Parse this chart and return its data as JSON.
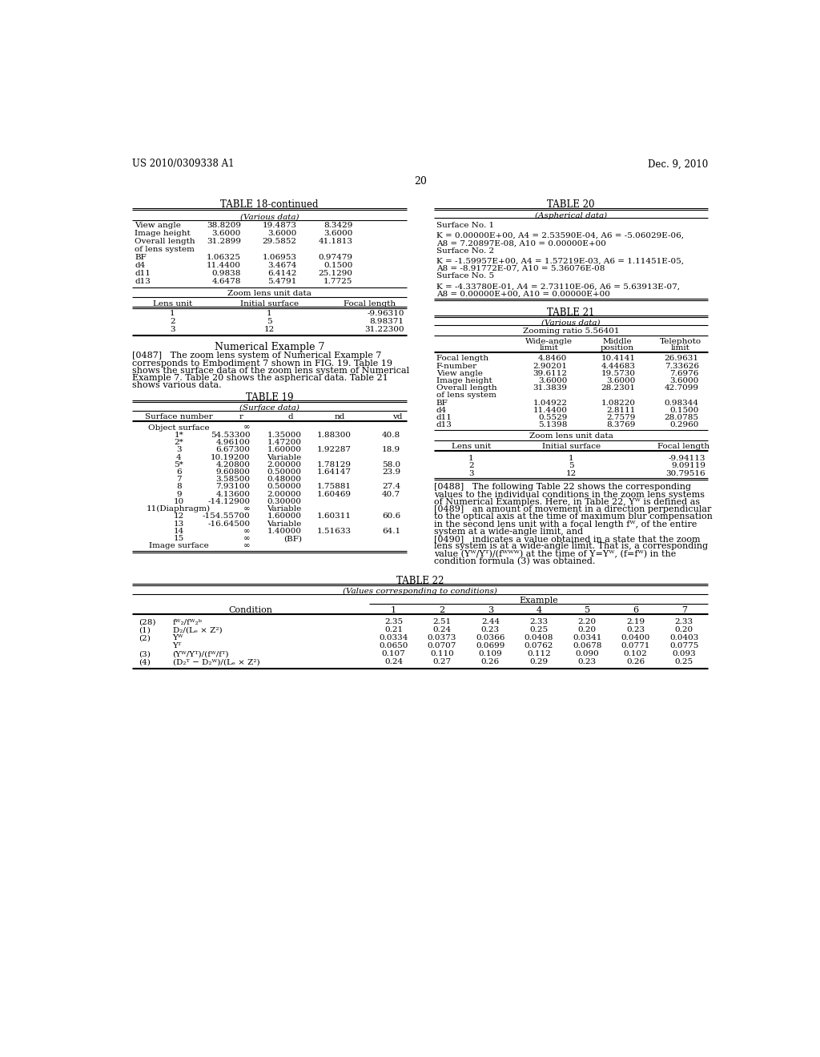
{
  "header_left": "US 2010/0309338 A1",
  "header_right": "Dec. 9, 2010",
  "page_number": "20",
  "background_color": "#ffffff",
  "text_color": "#000000",
  "table18c_title": "TABLE 18-continued",
  "table18c_subtitle": "(Various data)",
  "table18c_various_rows": [
    [
      "View angle",
      "38.8209",
      "19.4873",
      "8.3429"
    ],
    [
      "Image height",
      "3.6000",
      "3.6000",
      "3.6000"
    ],
    [
      "Overall length",
      "31.2899",
      "29.5852",
      "41.1813"
    ],
    [
      "of lens system",
      "",
      "",
      ""
    ],
    [
      "BF",
      "1.06325",
      "1.06953",
      "0.97479"
    ],
    [
      "d4",
      "11.4400",
      "3.4674",
      "0.1500"
    ],
    [
      "d11",
      "0.9838",
      "6.4142",
      "25.1290"
    ],
    [
      "d13",
      "4.6478",
      "5.4791",
      "1.7725"
    ]
  ],
  "table18c_zoom_subtitle": "Zoom lens unit data",
  "table18c_zoom_headers": [
    "Lens unit",
    "Initial surface",
    "Focal length"
  ],
  "table18c_zoom_rows": [
    [
      "1",
      "1",
      "-9.96310"
    ],
    [
      "2",
      "5",
      "8.98371"
    ],
    [
      "3",
      "12",
      "31.22300"
    ]
  ],
  "numerical_example7_title": "Numerical Example 7",
  "para0487_lines": [
    "[0487]   The zoom lens system of Numerical Example 7",
    "corresponds to Embodiment 7 shown in FIG. 19. Table 19",
    "shows the surface data of the zoom lens system of Numerical",
    "Example 7. Table 20 shows the aspherical data. Table 21",
    "shows various data."
  ],
  "table19_title": "TABLE 19",
  "table19_subtitle": "(Surface data)",
  "table19_headers": [
    "Surface number",
    "r",
    "d",
    "nd",
    "vd"
  ],
  "table19_rows": [
    [
      "Object surface",
      "∞",
      "",
      "",
      ""
    ],
    [
      "1*",
      "54.53300",
      "1.35000",
      "1.88300",
      "40.8"
    ],
    [
      "2*",
      "4.96100",
      "1.47200",
      "",
      ""
    ],
    [
      "3",
      "6.67300",
      "1.60000",
      "1.92287",
      "18.9"
    ],
    [
      "4",
      "10.19200",
      "Variable",
      "",
      ""
    ],
    [
      "5*",
      "4.20800",
      "2.00000",
      "1.78129",
      "58.0"
    ],
    [
      "6",
      "9.60800",
      "0.50000",
      "1.64147",
      "23.9"
    ],
    [
      "7",
      "3.58500",
      "0.48000",
      "",
      ""
    ],
    [
      "8",
      "7.93100",
      "0.50000",
      "1.75881",
      "27.4"
    ],
    [
      "9",
      "4.13600",
      "2.00000",
      "1.60469",
      "40.7"
    ],
    [
      "10",
      "-14.12900",
      "0.30000",
      "",
      ""
    ],
    [
      "11(Diaphragm)",
      "∞",
      "Variable",
      "",
      ""
    ],
    [
      "12",
      "-154.55700",
      "1.60000",
      "1.60311",
      "60.6"
    ],
    [
      "13",
      "-16.64500",
      "Variable",
      "",
      ""
    ],
    [
      "14",
      "∞",
      "1.40000",
      "1.51633",
      "64.1"
    ],
    [
      "15",
      "∞",
      "(BF)",
      "",
      ""
    ],
    [
      "Image surface",
      "∞",
      "",
      "",
      ""
    ]
  ],
  "table20_title": "TABLE 20",
  "table20_subtitle": "(Aspherical data)",
  "table20_text": [
    "Surface No. 1",
    "",
    "K = 0.00000E+00, A4 = 2.53590E-04, A6 = -5.06029E-06,",
    "A8 = 7.20897E-08, A10 = 0.00000E+00",
    "Surface No. 2",
    "",
    "K = -1.59957E+00, A4 = 1.57219E-03, A6 = 1.11451E-05,",
    "A8 = -8.91772E-07, A10 = 5.36076E-08",
    "Surface No. 5",
    "",
    "K = -4.33780E-01, A4 = 2.73110E-06, A6 = 5.63913E-07,",
    "A8 = 0.00000E+00, A10 = 0.00000E+00"
  ],
  "table21_title": "TABLE 21",
  "table21_subtitle": "(Various data)",
  "table21_zoom_ratio": "Zooming ratio 5.56401",
  "table21_rows": [
    [
      "Focal length",
      "4.8460",
      "10.4141",
      "26.9631"
    ],
    [
      "F-number",
      "2.90201",
      "4.44683",
      "7.33626"
    ],
    [
      "View angle",
      "39.6112",
      "19.5730",
      "7.6976"
    ],
    [
      "Image height",
      "3.6000",
      "3.6000",
      "3.6000"
    ],
    [
      "Overall length",
      "31.3839",
      "28.2301",
      "42.7099"
    ],
    [
      "of lens system",
      "",
      "",
      ""
    ],
    [
      "BF",
      "1.04922",
      "1.08220",
      "0.98344"
    ],
    [
      "d4",
      "11.4400",
      "2.8111",
      "0.1500"
    ],
    [
      "d11",
      "0.5529",
      "2.7579",
      "28.0785"
    ],
    [
      "d13",
      "5.1398",
      "8.3769",
      "0.2960"
    ]
  ],
  "table21_zoom_subtitle": "Zoom lens unit data",
  "table21_zoom_headers": [
    "Lens unit",
    "Initial surface",
    "Focal length"
  ],
  "table21_zoom_rows": [
    [
      "1",
      "1",
      "-9.94113"
    ],
    [
      "2",
      "5",
      "9.09119"
    ],
    [
      "3",
      "12",
      "30.79516"
    ]
  ],
  "para0488_lines": [
    "[0488]   The following Table 22 shows the corresponding",
    "values to the individual conditions in the zoom lens systems",
    "of Numerical Examples. Here, in Table 22, Yᵂ is defined as"
  ],
  "para0489_lines": [
    "[0489]   an amount of movement in a direction perpendicular",
    "to the optical axis at the time of maximum blur compensation",
    "in the second lens unit with a focal length fᵂ, of the entire",
    "system at a wide-angle limit, and"
  ],
  "para0490_lines": [
    "[0490]   indicates a value obtained in a state that the zoom",
    "lens system is at a wide-angle limit. That is, a corresponding",
    "value (Yᵂ/Yᵀ)/(fᵂᵂᵂ) at the time of Y=Yᵂ, (f=fᵂ) in the",
    "condition formula (3) was obtained."
  ],
  "table22_title": "TABLE 22",
  "table22_subtitle": "(Values corresponding to conditions)",
  "table22_example_header": "Example",
  "table22_col_numbers": [
    "1",
    "2",
    "3",
    "4",
    "5",
    "6",
    "7"
  ],
  "table22_cond_col": [
    "(28)",
    "(1)",
    "(2)",
    "",
    "(3)",
    "(4)"
  ],
  "table22_formula_col": [
    "fᵂ₂/fᵂ₂ᵇ",
    "D₂/(Lₑ × Z²)",
    "Yᵂ",
    "Yᵀ",
    "(Yᵂ/Yᵀ)/(fᵂ/fᵀ)",
    "(D₂ᵀ − D₂ᵂ)/(Lₑ × Z²)"
  ],
  "table22_data": [
    [
      "2.35",
      "2.51",
      "2.44",
      "2.33",
      "2.20",
      "2.19",
      "2.33"
    ],
    [
      "0.21",
      "0.24",
      "0.23",
      "0.25",
      "0.20",
      "0.23",
      "0.20"
    ],
    [
      "0.0334",
      "0.0373",
      "0.0366",
      "0.0408",
      "0.0341",
      "0.0400",
      "0.0403"
    ],
    [
      "0.0650",
      "0.0707",
      "0.0699",
      "0.0762",
      "0.0678",
      "0.0771",
      "0.0775"
    ],
    [
      "0.107",
      "0.110",
      "0.109",
      "0.112",
      "0.090",
      "0.102",
      "0.093"
    ],
    [
      "0.24",
      "0.27",
      "0.26",
      "0.29",
      "0.23",
      "0.26",
      "0.25"
    ]
  ]
}
